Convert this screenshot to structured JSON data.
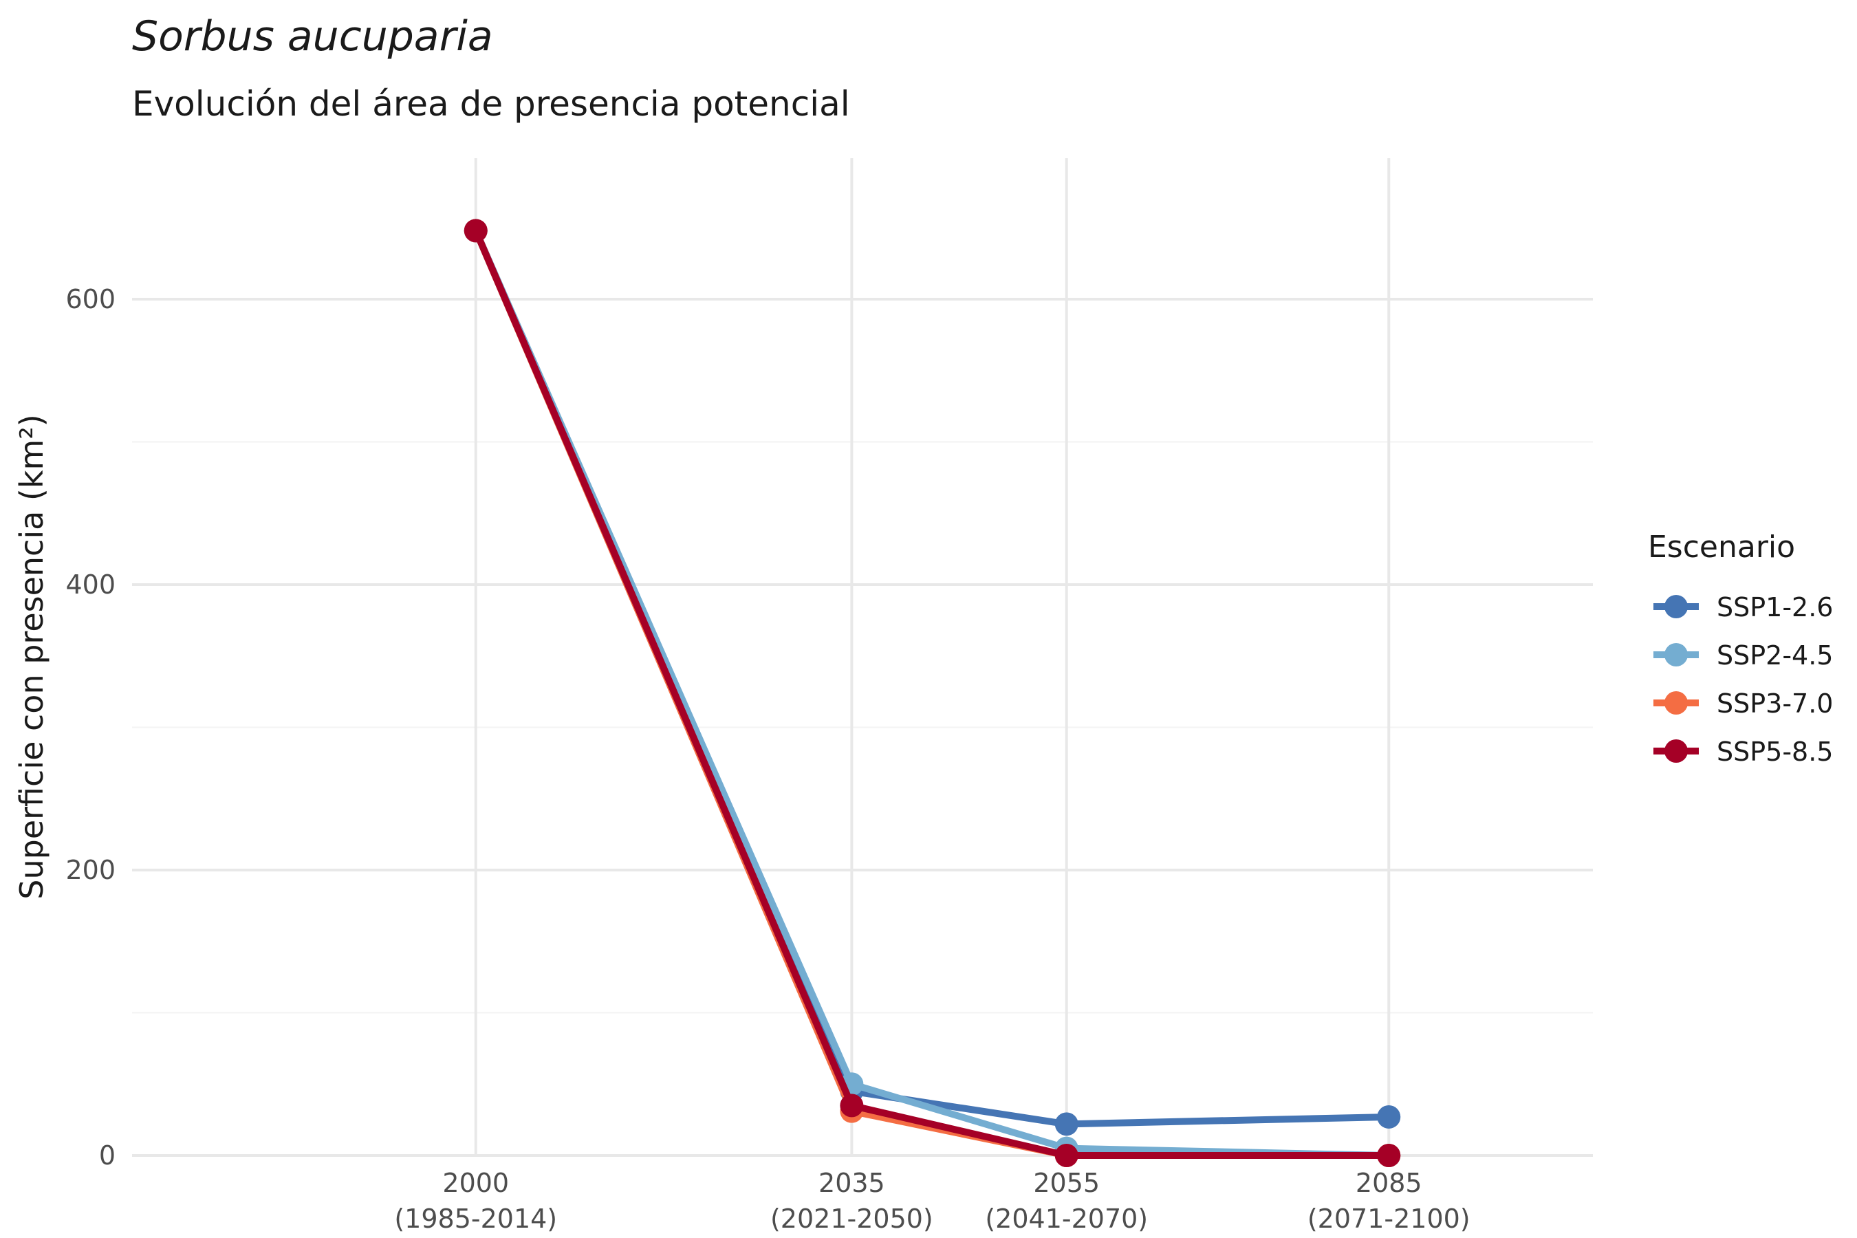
{
  "chart_data": {
    "type": "line",
    "title": "Sorbus aucuparia",
    "subtitle": "Evolución del área de presencia potencial",
    "ylabel": "Superficie con presencia (km²)",
    "xlabel": "",
    "x": [
      2000,
      2035,
      2055,
      2085
    ],
    "x_tick_labels": [
      {
        "year": "2000",
        "period": "(1985-2014)"
      },
      {
        "year": "2035",
        "period": "(2021-2050)"
      },
      {
        "year": "2055",
        "period": "(2041-2070)"
      },
      {
        "year": "2085",
        "period": "(2071-2100)"
      }
    ],
    "xlim": [
      1968,
      2104
    ],
    "ylim": [
      0,
      650
    ],
    "y_ticks": [
      0,
      200,
      400,
      600
    ],
    "grid": true,
    "legend": {
      "title": "Escenario",
      "position": "right"
    },
    "series": [
      {
        "name": "SSP1-2.6",
        "color": "#4575b4",
        "values": [
          648,
          45,
          22,
          27
        ]
      },
      {
        "name": "SSP2-4.5",
        "color": "#74add1",
        "values": [
          648,
          50,
          5,
          0
        ]
      },
      {
        "name": "SSP3-7.0",
        "color": "#f46d43",
        "values": [
          648,
          31,
          0,
          0
        ]
      },
      {
        "name": "SSP5-8.5",
        "color": "#a50026",
        "values": [
          648,
          35,
          0,
          0
        ]
      }
    ]
  }
}
